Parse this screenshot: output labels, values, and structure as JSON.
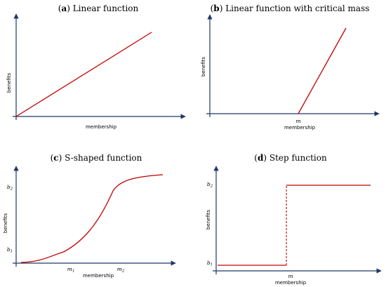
{
  "colors": {
    "axis": "#1f3864",
    "curve": "#c00000"
  },
  "chart_data": [
    {
      "type": "line",
      "panel_letter": "a",
      "title": "Linear function",
      "xlabel": "membership",
      "ylabel": "benefits",
      "series": [
        {
          "x": [
            0,
            1
          ],
          "y": [
            0,
            1
          ]
        }
      ]
    },
    {
      "type": "line",
      "panel_letter": "b",
      "title": "Linear function with critical mass",
      "xlabel": "membership",
      "ylabel": "benefits",
      "x_tick_labels": [
        "m"
      ],
      "series": [
        {
          "x": [
            0.6,
            1
          ],
          "y": [
            0,
            1
          ]
        }
      ]
    },
    {
      "type": "line",
      "panel_letter": "c",
      "title": "S-shaped function",
      "xlabel": "membership",
      "ylabel": "benefits",
      "x_tick_labels": [
        "m1",
        "m2"
      ],
      "y_tick_labels": [
        "b1",
        "b2"
      ],
      "series": [
        {
          "x": [
            0,
            0.3,
            0.65,
            1
          ],
          "y": [
            0,
            0.12,
            0.82,
            1
          ]
        }
      ]
    },
    {
      "type": "line",
      "panel_letter": "d",
      "title": "Step function",
      "xlabel": "membership",
      "ylabel": "benefits",
      "x_tick_labels": [
        "m"
      ],
      "y_tick_labels": [
        "b1",
        "b2"
      ],
      "series": [
        {
          "x": [
            0,
            0.45,
            0.45,
            1
          ],
          "y": [
            0,
            0,
            1,
            1
          ]
        }
      ]
    }
  ]
}
